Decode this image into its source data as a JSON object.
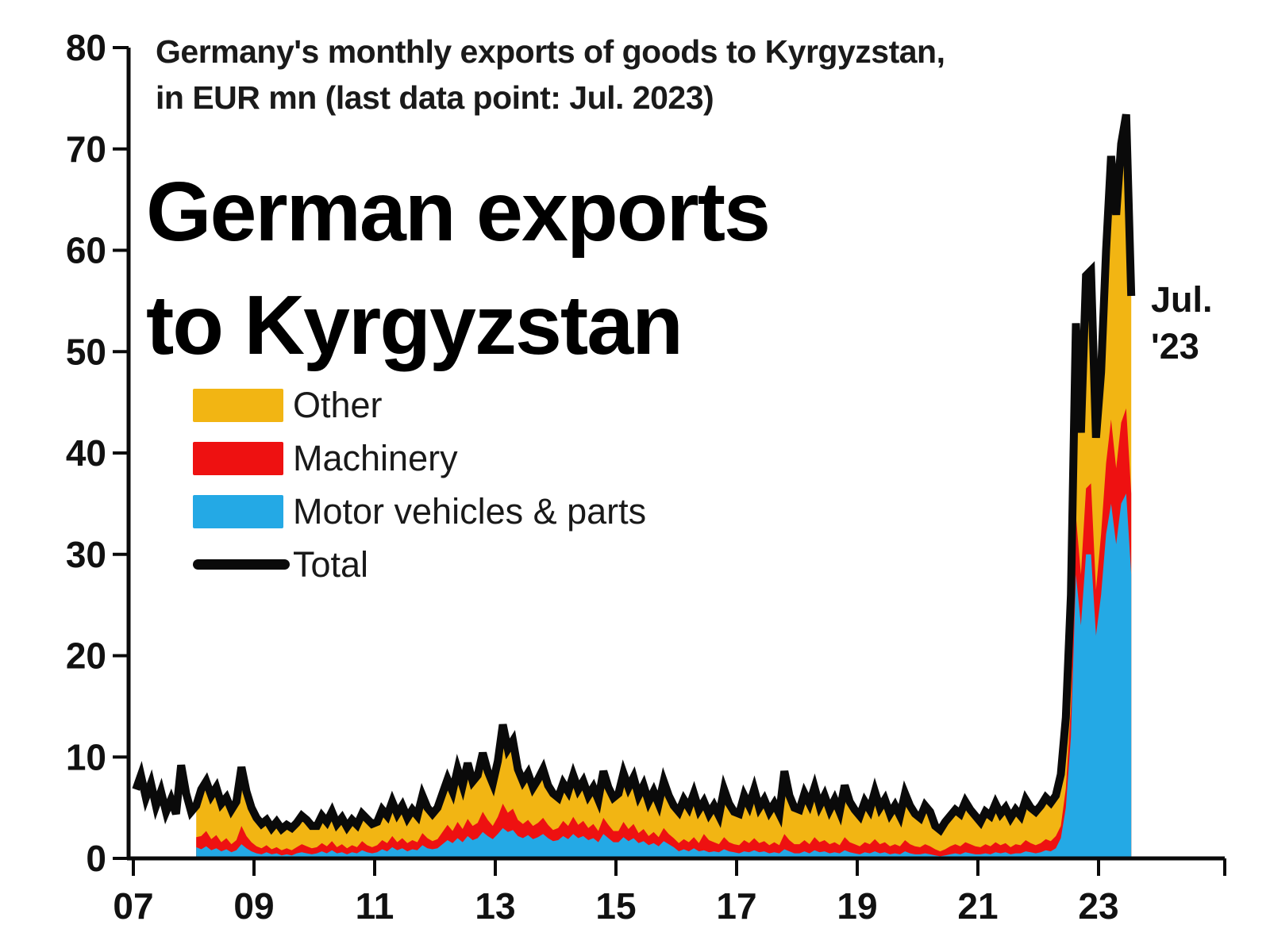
{
  "chart_data": {
    "type": "area",
    "stacked": true,
    "subtitle_lines": [
      "Germany's monthly exports of goods to Kyrgyzstan,",
      "in EUR mn (last data point: Jul. 2023)"
    ],
    "title_lines": [
      "German exports",
      "to Kyrgyzstan"
    ],
    "annotation": {
      "line1": "Jul.",
      "line2": "'23"
    },
    "frequency": "monthly",
    "start_month": "2007-01",
    "end_month": "2023-07",
    "unit": "EUR mn",
    "grid": false,
    "legend": {
      "position": "upper-left-inside",
      "entries": [
        {
          "label": "Other",
          "color": "#F2B513",
          "marker": "box"
        },
        {
          "label": "Machinery",
          "color": "#EE1111",
          "marker": "box"
        },
        {
          "label": "Motor vehicles & parts",
          "color": "#24A9E5",
          "marker": "box"
        },
        {
          "label": "Total",
          "color": "#0A0A0A",
          "marker": "line"
        }
      ]
    },
    "x_axis": {
      "tick_labels": [
        "07",
        "09",
        "11",
        "13",
        "15",
        "17",
        "19",
        "21",
        "23"
      ],
      "tick_years": [
        2007,
        2009,
        2011,
        2013,
        2015,
        2017,
        2019,
        2021,
        2023
      ],
      "range_years": [
        2007,
        2025.1
      ]
    },
    "y_axis": {
      "ticks": [
        0,
        10,
        20,
        30,
        40,
        50,
        60,
        70,
        80
      ],
      "range": [
        0,
        80
      ]
    },
    "series": [
      {
        "name": "Motor vehicles & parts",
        "color": "#24A9E5",
        "values": [
          0,
          0,
          0,
          0,
          0,
          0,
          0,
          0,
          0,
          0,
          0,
          0,
          1.1,
          0.9,
          1.2,
          0.8,
          1.0,
          0.7,
          0.9,
          0.6,
          0.8,
          1.4,
          1.0,
          0.7,
          0.5,
          0.4,
          0.6,
          0.4,
          0.5,
          0.3,
          0.4,
          0.3,
          0.5,
          0.6,
          0.5,
          0.4,
          0.5,
          0.7,
          0.5,
          0.8,
          0.5,
          0.6,
          0.4,
          0.6,
          0.5,
          0.8,
          0.6,
          0.5,
          0.6,
          0.9,
          0.7,
          1.1,
          0.8,
          1.0,
          0.7,
          0.9,
          0.8,
          1.3,
          1.0,
          0.9,
          1.0,
          1.4,
          1.8,
          1.5,
          2.0,
          1.6,
          2.2,
          1.8,
          2.0,
          2.6,
          2.2,
          1.9,
          2.4,
          3.0,
          2.6,
          2.8,
          2.2,
          2.0,
          2.3,
          1.9,
          2.1,
          2.4,
          2.0,
          1.7,
          1.8,
          2.2,
          1.9,
          2.4,
          2.0,
          2.2,
          1.8,
          2.0,
          1.6,
          2.4,
          2.0,
          1.6,
          1.6,
          2.1,
          1.7,
          2.0,
          1.5,
          1.7,
          1.3,
          1.5,
          1.2,
          1.7,
          1.4,
          1.1,
          0.7,
          0.9,
          0.7,
          1.0,
          0.7,
          0.8,
          0.6,
          0.7,
          0.6,
          0.9,
          0.7,
          0.6,
          0.5,
          0.7,
          0.6,
          0.8,
          0.6,
          0.7,
          0.5,
          0.6,
          0.5,
          0.9,
          0.7,
          0.5,
          0.5,
          0.7,
          0.5,
          0.8,
          0.6,
          0.7,
          0.5,
          0.6,
          0.5,
          0.8,
          0.6,
          0.5,
          0.4,
          0.6,
          0.5,
          0.7,
          0.5,
          0.6,
          0.4,
          0.5,
          0.4,
          0.7,
          0.5,
          0.4,
          0.4,
          0.5,
          0.4,
          0.3,
          0.2,
          0.3,
          0.4,
          0.5,
          0.4,
          0.6,
          0.5,
          0.4,
          0.4,
          0.5,
          0.4,
          0.6,
          0.5,
          0.6,
          0.4,
          0.5,
          0.5,
          0.7,
          0.6,
          0.5,
          0.6,
          0.8,
          0.7,
          1.0,
          2.0,
          5.0,
          12.0,
          28.0,
          23.0,
          30.0,
          30.0,
          22.0,
          26.0,
          32.0,
          35.0,
          31.0,
          35.0,
          36.0,
          28.0
        ]
      },
      {
        "name": "Machinery",
        "color": "#EE1111",
        "values": [
          0,
          0,
          0,
          0,
          0,
          0,
          0,
          0,
          0,
          0,
          0,
          0,
          1.0,
          1.3,
          1.5,
          1.1,
          1.3,
          0.9,
          1.1,
          0.8,
          1.0,
          1.8,
          1.2,
          0.9,
          0.7,
          0.6,
          0.7,
          0.5,
          0.6,
          0.5,
          0.6,
          0.5,
          0.6,
          0.8,
          0.7,
          0.6,
          0.6,
          0.8,
          0.7,
          0.9,
          0.6,
          0.8,
          0.6,
          0.7,
          0.6,
          0.9,
          0.7,
          0.6,
          0.7,
          0.9,
          0.8,
          1.1,
          0.8,
          1.0,
          0.8,
          0.9,
          0.8,
          1.2,
          1.0,
          0.8,
          0.9,
          1.2,
          1.5,
          1.2,
          1.6,
          1.3,
          1.7,
          1.4,
          1.5,
          2.0,
          1.6,
          1.3,
          1.7,
          2.4,
          1.9,
          2.1,
          1.6,
          1.4,
          1.5,
          1.3,
          1.4,
          1.6,
          1.3,
          1.1,
          1.2,
          1.5,
          1.3,
          1.7,
          1.3,
          1.5,
          1.2,
          1.4,
          1.1,
          1.6,
          1.3,
          1.1,
          1.1,
          1.5,
          1.2,
          1.4,
          1.0,
          1.2,
          0.9,
          1.1,
          0.9,
          1.3,
          1.0,
          0.9,
          0.8,
          1.0,
          0.9,
          1.1,
          0.8,
          1.6,
          1.2,
          0.9,
          0.8,
          1.2,
          0.9,
          0.8,
          0.8,
          1.1,
          0.9,
          1.2,
          0.9,
          1.0,
          0.8,
          1.0,
          0.8,
          1.5,
          1.1,
          0.9,
          0.9,
          1.1,
          0.9,
          1.3,
          1.0,
          1.1,
          0.9,
          1.0,
          0.8,
          1.3,
          1.0,
          0.9,
          0.8,
          1.0,
          0.9,
          1.2,
          0.9,
          1.0,
          0.8,
          0.9,
          0.8,
          1.1,
          0.9,
          0.8,
          0.7,
          0.9,
          0.8,
          0.6,
          0.5,
          0.6,
          0.8,
          0.9,
          0.8,
          1.0,
          0.9,
          0.8,
          0.7,
          0.9,
          0.8,
          1.0,
          0.8,
          0.9,
          0.7,
          0.9,
          0.8,
          1.1,
          0.9,
          0.8,
          0.9,
          1.1,
          1.0,
          1.2,
          1.2,
          1.9,
          3.0,
          5.8,
          5.0,
          6.5,
          7.0,
          4.5,
          6.0,
          7.0,
          8.3,
          7.5,
          8.0,
          8.4,
          8.0
        ]
      },
      {
        "name": "Other",
        "color": "#F2B513",
        "values": [
          0,
          0,
          0,
          0,
          0,
          0,
          0,
          0,
          0,
          0,
          0,
          0,
          3.1,
          4.6,
          4.9,
          4.3,
          4.7,
          3.8,
          4.0,
          3.4,
          3.8,
          5.8,
          4.4,
          3.4,
          2.8,
          2.4,
          2.5,
          2.1,
          2.5,
          2.1,
          2.3,
          2.2,
          2.4,
          2.8,
          2.6,
          2.2,
          2.1,
          2.7,
          2.4,
          2.9,
          2.3,
          2.6,
          2.1,
          2.5,
          2.2,
          2.7,
          2.6,
          2.3,
          2.3,
          3.0,
          2.7,
          3.4,
          2.8,
          3.2,
          2.5,
          3.0,
          2.6,
          3.7,
          3.0,
          2.7,
          3.1,
          3.8,
          4.5,
          3.9,
          5.2,
          4.3,
          5.5,
          4.4,
          4.7,
          5.8,
          4.8,
          4.2,
          5.5,
          7.8,
          6.3,
          6.7,
          5.0,
          4.2,
          4.6,
          3.8,
          4.3,
          4.8,
          3.9,
          3.6,
          3.0,
          3.7,
          3.4,
          4.1,
          3.5,
          3.9,
          3.2,
          3.6,
          3.1,
          4.6,
          3.7,
          3.3,
          3.7,
          4.8,
          4.1,
          4.6,
          3.7,
          4.3,
          3.4,
          4.0,
          3.3,
          4.6,
          3.8,
          3.2,
          3.1,
          3.9,
          3.4,
          4.3,
          3.3,
          3.2,
          2.6,
          3.6,
          2.8,
          4.7,
          3.8,
          3.2,
          3.1,
          4.4,
          3.7,
          4.8,
          3.5,
          4.1,
          3.3,
          3.8,
          3.1,
          6.2,
          4.4,
          3.6,
          3.4,
          4.6,
          4.0,
          4.9,
          3.6,
          4.4,
          3.4,
          4.2,
          3.3,
          5.1,
          4.0,
          3.4,
          3.0,
          4.0,
          3.4,
          4.7,
          3.6,
          4.2,
          3.2,
          3.8,
          3.0,
          4.6,
          3.8,
          3.2,
          2.9,
          3.8,
          3.4,
          2.3,
          2.1,
          2.7,
          3.0,
          3.4,
          3.2,
          4.0,
          3.4,
          3.0,
          2.5,
          3.2,
          3.0,
          3.8,
          3.1,
          3.5,
          2.9,
          3.4,
          2.9,
          4.0,
          3.5,
          3.3,
          3.7,
          4.1,
          3.8,
          4.0,
          5.1,
          7.0,
          11.0,
          19.0,
          14.0,
          21.0,
          21.0,
          15.0,
          16.0,
          21.0,
          26.0,
          25.0,
          27.5,
          29.0,
          19.5
        ]
      }
    ],
    "total_series": {
      "name": "Total",
      "color": "#0A0A0A",
      "values": [
        6.8,
        8.2,
        6.0,
        7.4,
        5.2,
        6.6,
        4.6,
        5.8,
        4.4,
        9.2,
        6.4,
        4.6,
        5.2,
        6.8,
        7.6,
        6.2,
        7.0,
        5.4,
        6.0,
        4.8,
        5.6,
        9.0,
        6.6,
        5.0,
        4.0,
        3.4,
        3.8,
        3.0,
        3.6,
        2.9,
        3.3,
        3.0,
        3.5,
        4.2,
        3.8,
        3.2,
        3.2,
        4.2,
        3.6,
        4.6,
        3.4,
        4.0,
        3.1,
        3.8,
        3.3,
        4.4,
        3.9,
        3.4,
        3.6,
        4.8,
        4.2,
        5.6,
        4.4,
        5.2,
        4.0,
        4.8,
        4.2,
        6.2,
        5.0,
        4.4,
        5.0,
        6.4,
        7.8,
        6.6,
        8.8,
        7.2,
        9.4,
        7.6,
        8.2,
        10.4,
        8.6,
        7.4,
        9.6,
        13.2,
        10.8,
        11.6,
        8.8,
        7.6,
        8.4,
        7.0,
        7.8,
        8.8,
        7.2,
        6.4,
        6.0,
        7.4,
        6.6,
        8.2,
        6.8,
        7.6,
        6.2,
        7.0,
        5.8,
        8.6,
        7.0,
        6.0,
        6.4,
        8.4,
        7.0,
        8.0,
        6.2,
        7.2,
        5.6,
        6.6,
        5.4,
        7.6,
        6.2,
        5.2,
        4.6,
        5.8,
        5.0,
        6.4,
        4.8,
        5.6,
        4.4,
        5.2,
        4.2,
        6.8,
        5.4,
        4.6,
        4.4,
        6.2,
        5.2,
        6.8,
        5.0,
        5.8,
        4.6,
        5.4,
        4.4,
        8.6,
        6.2,
        5.0,
        4.8,
        6.4,
        5.4,
        7.0,
        5.2,
        6.2,
        4.8,
        5.8,
        4.6,
        7.2,
        5.6,
        4.8,
        4.2,
        5.6,
        4.8,
        6.6,
        5.0,
        5.8,
        4.4,
        5.2,
        4.2,
        6.4,
        5.2,
        4.4,
        4.0,
        5.2,
        4.6,
        3.2,
        2.8,
        3.6,
        4.2,
        4.8,
        4.4,
        5.6,
        4.8,
        4.2,
        3.6,
        4.6,
        4.2,
        5.4,
        4.4,
        5.0,
        4.0,
        4.8,
        4.2,
        5.8,
        5.0,
        4.6,
        5.2,
        6.0,
        5.5,
        6.2,
        8.3,
        13.9,
        26.0,
        52.8,
        42.0,
        57.5,
        58.0,
        41.5,
        48.0,
        60.0,
        69.3,
        63.5,
        70.5,
        73.4,
        55.5
      ]
    }
  }
}
